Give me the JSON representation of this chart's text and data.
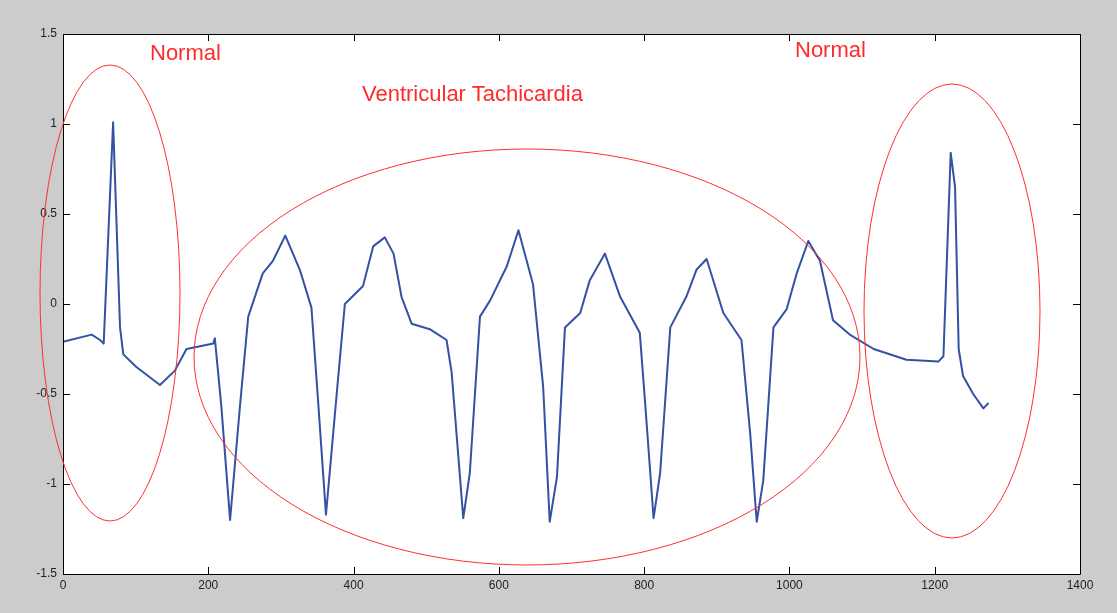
{
  "chart_data": {
    "type": "line",
    "xlim": [
      0,
      1400
    ],
    "ylim": [
      -1.5,
      1.5
    ],
    "xticks": [
      0,
      200,
      400,
      600,
      800,
      1000,
      1200,
      1400
    ],
    "yticks": [
      -1.5,
      -1,
      -0.5,
      0,
      0.5,
      1,
      1.5
    ],
    "grid": false,
    "legend": false,
    "marker": "none",
    "line_style": "solid",
    "annotations": [
      "Normal",
      "Ventricular Tachicardia",
      "Normal"
    ],
    "series": [
      {
        "color": "#3452a4",
        "x": [
          0,
          39.5,
          51,
          56,
          69,
          78.5,
          83,
          101,
          133.5,
          154,
          170,
          207,
          209,
          218,
          230,
          244,
          255,
          275,
          289,
          306,
          326,
          342,
          351,
          362,
          377,
          388,
          413,
          427,
          443,
          455,
          466,
          480,
          505,
          528,
          535,
          551,
          560,
          574,
          588,
          611,
          627,
          647,
          661,
          670,
          680,
          691,
          712,
          725,
          746,
          767,
          794,
          801,
          813,
          822,
          836,
          858,
          872,
          886,
          909,
          934,
          946,
          955,
          964,
          978,
          996,
          1010,
          1026,
          1042,
          1060,
          1083,
          1116,
          1161,
          1205,
          1212,
          1222,
          1228,
          1233,
          1239,
          1253,
          1267,
          1274
        ],
        "values": [
          -0.21,
          -0.17,
          -0.2,
          -0.22,
          1.01,
          -0.13,
          -0.28,
          -0.35,
          -0.45,
          -0.37,
          -0.25,
          -0.22,
          -0.19,
          -0.57,
          -1.2,
          -0.55,
          -0.07,
          0.17,
          0.24,
          0.38,
          0.19,
          -0.02,
          -0.53,
          -1.17,
          -0.49,
          0.0,
          0.1,
          0.32,
          0.37,
          0.28,
          0.04,
          -0.11,
          -0.14,
          -0.2,
          -0.38,
          -1.19,
          -0.94,
          -0.07,
          0.02,
          0.21,
          0.41,
          0.11,
          -0.46,
          -1.21,
          -0.96,
          -0.13,
          -0.05,
          0.13,
          0.28,
          0.04,
          -0.16,
          -0.53,
          -1.19,
          -0.94,
          -0.13,
          0.04,
          0.19,
          0.25,
          -0.05,
          -0.2,
          -0.72,
          -1.21,
          -0.98,
          -0.13,
          -0.03,
          0.17,
          0.35,
          0.24,
          -0.09,
          -0.17,
          -0.25,
          -0.31,
          -0.32,
          -0.29,
          0.84,
          0.65,
          -0.25,
          -0.4,
          -0.5,
          -0.58,
          -0.55
        ]
      }
    ]
  }
}
